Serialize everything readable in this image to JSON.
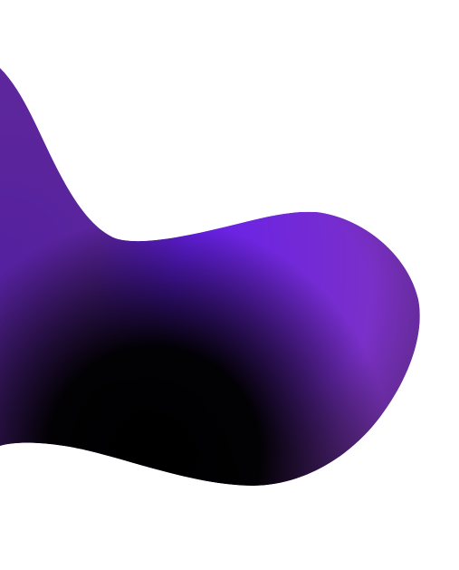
{
  "background_color": "#ffffff",
  "shape": {
    "name": "gradient-blob",
    "colors": {
      "violet_bright": "#4a0af5",
      "violet_mid": "#6a22e8",
      "purple_soft": "#7a30c8",
      "plum_edge": "#5a2a7a",
      "shadow": "#000000"
    }
  }
}
